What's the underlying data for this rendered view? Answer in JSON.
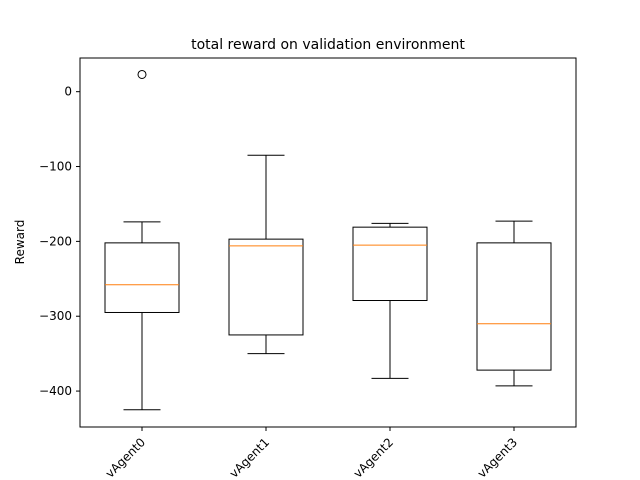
{
  "chart_data": {
    "type": "box",
    "title": "total reward on validation environment",
    "xlabel": "",
    "ylabel": "Reward",
    "ylim": [
      -448,
      45
    ],
    "yticks": [
      0,
      -100,
      -200,
      -300,
      -400
    ],
    "ytick_labels": [
      "0",
      "−100",
      "−200",
      "−300",
      "−400"
    ],
    "categories": [
      "vAgent0",
      "vAgent1",
      "vAgent2",
      "vAgent3"
    ],
    "boxes": [
      {
        "whisker_low": -425,
        "q1": -295,
        "median": -258,
        "q3": -202,
        "whisker_high": -174,
        "outliers": [
          23
        ]
      },
      {
        "whisker_low": -350,
        "q1": -325,
        "median": -206,
        "q3": -197,
        "whisker_high": -85,
        "outliers": []
      },
      {
        "whisker_low": -383,
        "q1": -279,
        "median": -205,
        "q3": -181,
        "whisker_high": -176,
        "outliers": []
      },
      {
        "whisker_low": -393,
        "q1": -372,
        "median": -310,
        "q3": -202,
        "whisker_high": -173,
        "outliers": []
      }
    ],
    "grid": false,
    "colors": {
      "box": "#000000",
      "median": "#ff7f0e",
      "outlier": "#000000"
    }
  }
}
